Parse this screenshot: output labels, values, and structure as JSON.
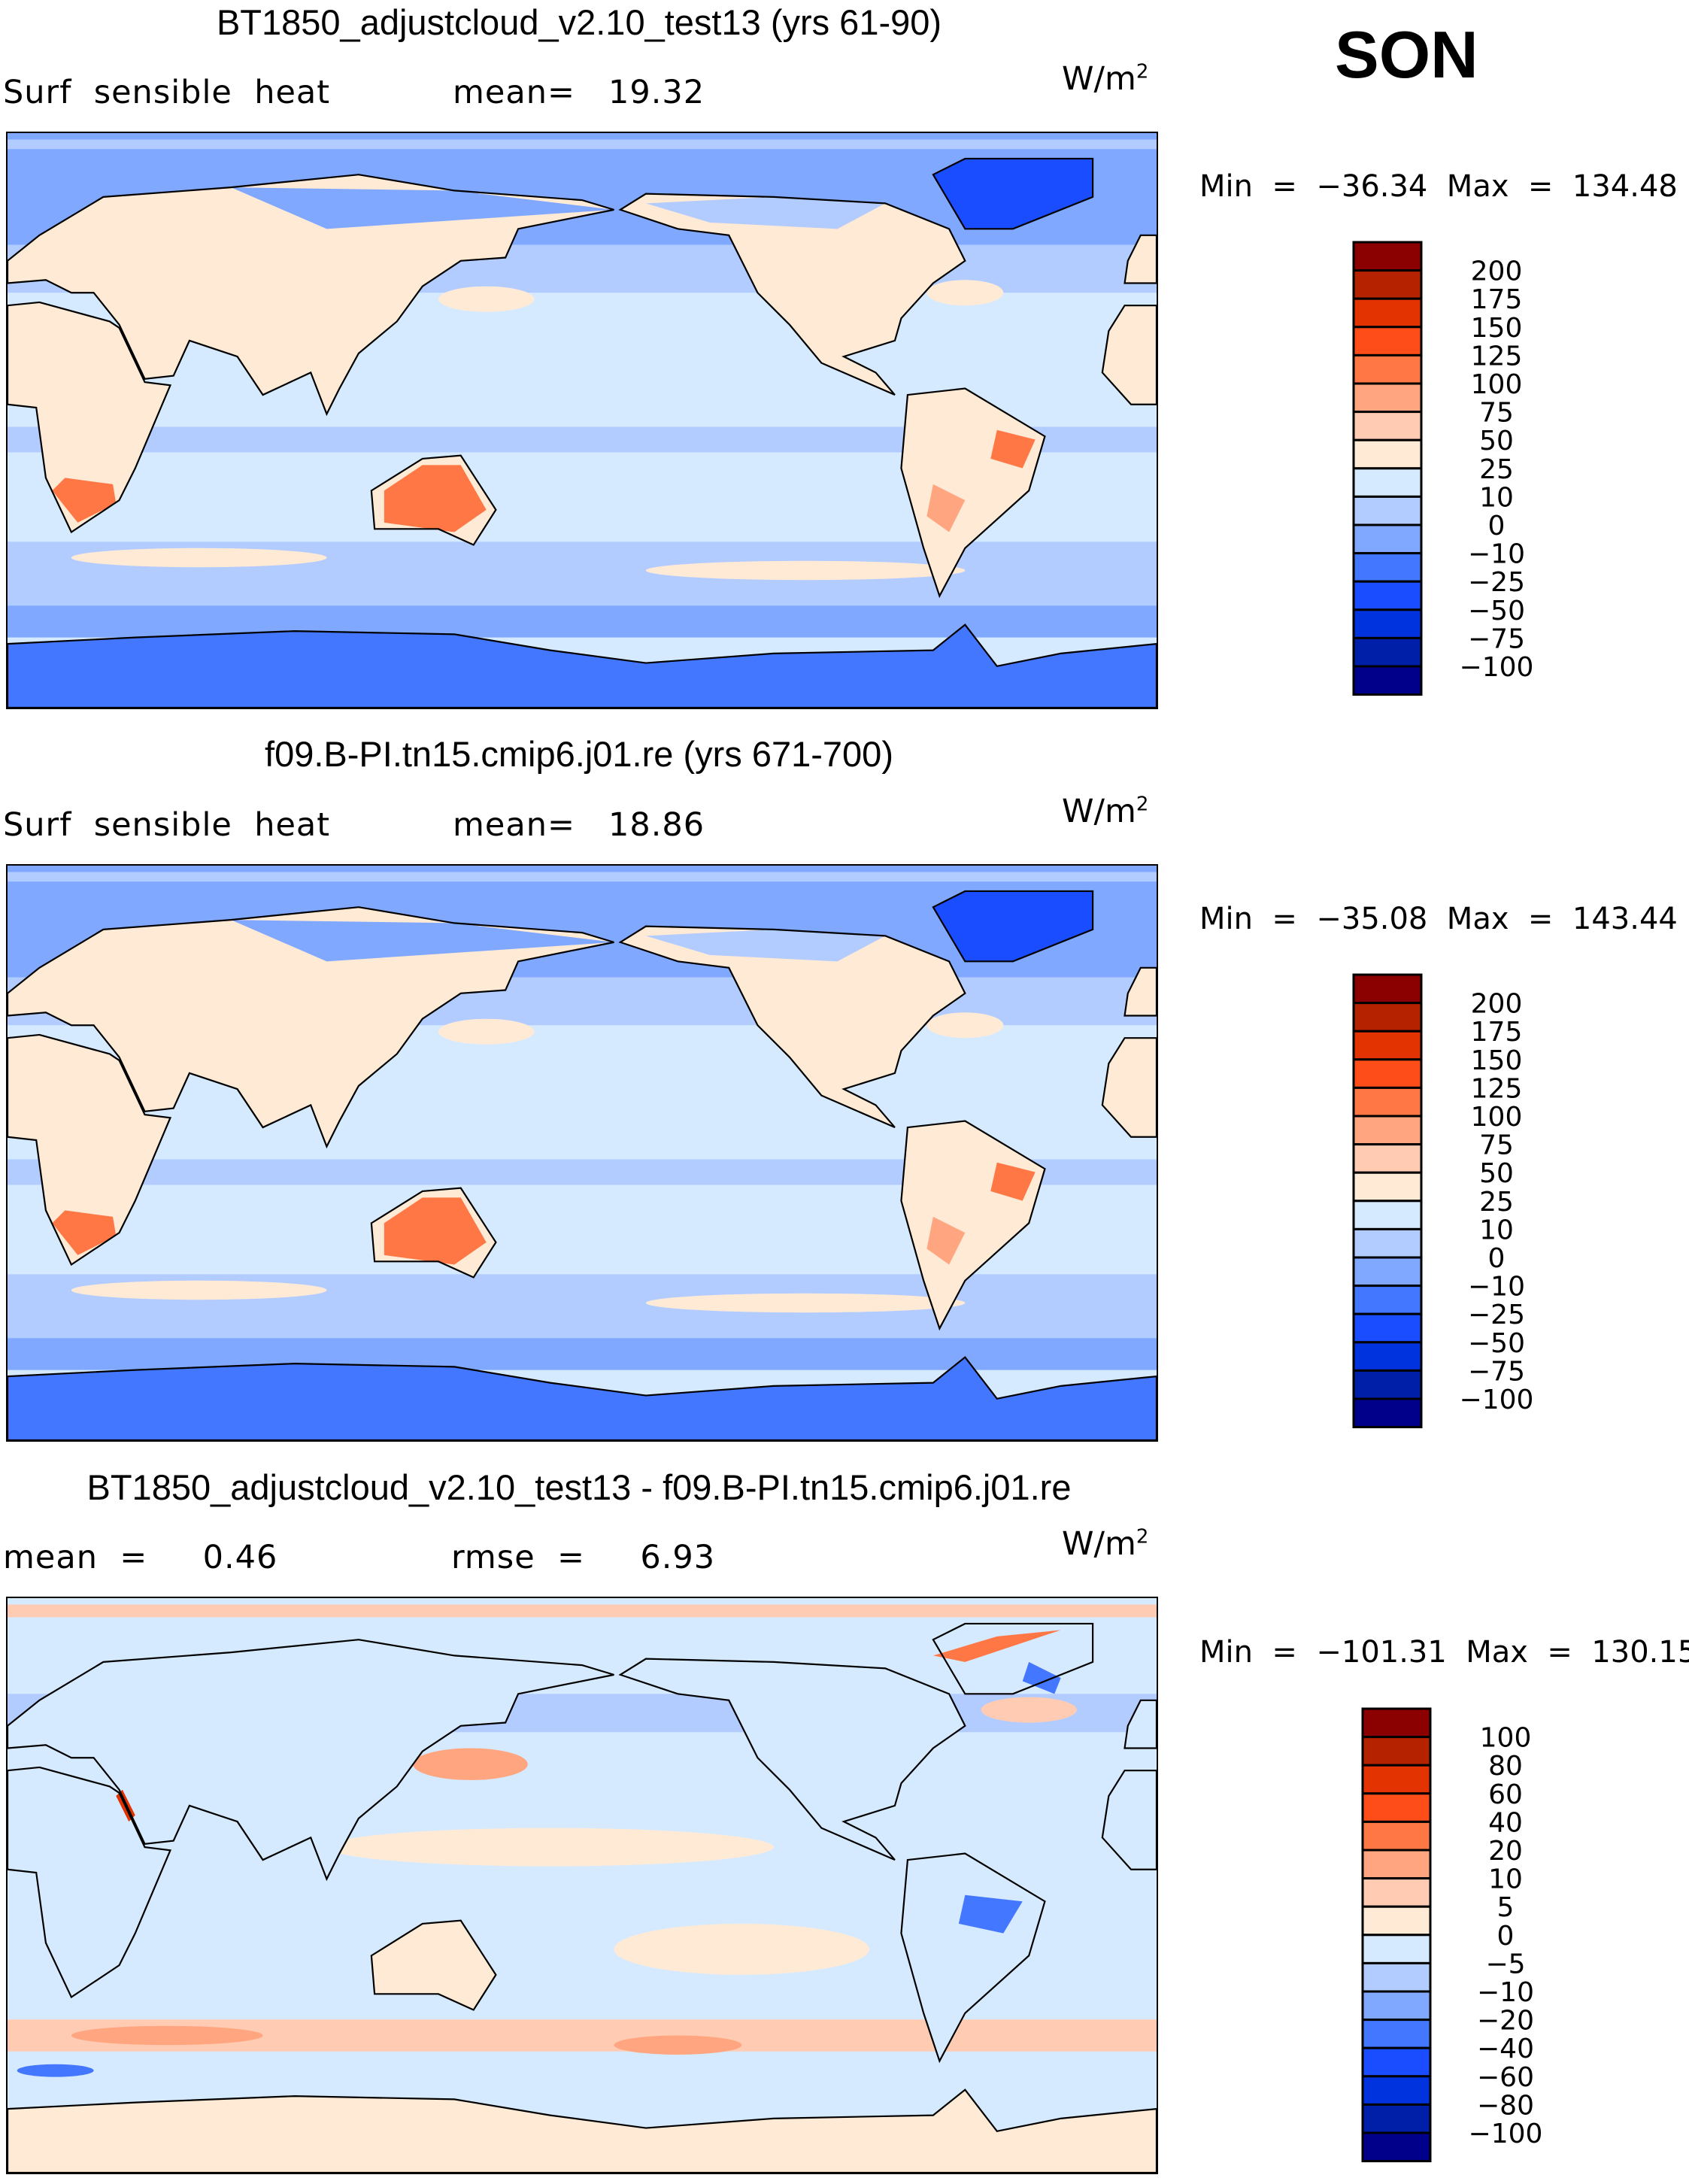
{
  "season": "SON",
  "unit_base": "W/m",
  "unit_exp": "2",
  "panels": [
    {
      "title": "BT1850_adjustcloud_v2.10_test13 (yrs 61-90)",
      "left_label": "Surf  sensible  heat",
      "center_label": "mean=   19.32",
      "minmax": "Min  =  −36.34  Max  =  134.48",
      "mean": 19.32,
      "min": -36.34,
      "max": 134.48
    },
    {
      "title": "f09.B-PI.tn15.cmip6.j01.re (yrs 671-700)",
      "left_label": "Surf  sensible  heat",
      "center_label": "mean=   18.86",
      "minmax": "Min  =  −35.08  Max  =  143.44",
      "mean": 18.86,
      "min": -35.08,
      "max": 143.44
    },
    {
      "title": "BT1850_adjustcloud_v2.10_test13 - f09.B-PI.tn15.cmip6.j01.re",
      "left_label": "mean  =     0.46",
      "center_label": "rmse  =     6.93",
      "minmax": "Min  =  −101.31  Max  =  130.15",
      "mean": 0.46,
      "rmse": 6.93,
      "min": -101.31,
      "max": 130.15
    }
  ],
  "colorbars": {
    "colors": [
      "#8b0000",
      "#b52200",
      "#e33300",
      "#ff4d1a",
      "#ff7744",
      "#ffa680",
      "#ffcbb3",
      "#ffead6",
      "#d6eaff",
      "#b3ccff",
      "#80a8ff",
      "#4477ff",
      "#1a4dff",
      "#0033dd",
      "#001fa8",
      "#00008b"
    ],
    "absolute_labels": [
      "200",
      "175",
      "150",
      "125",
      "100",
      "75",
      "50",
      "25",
      "10",
      "0",
      "−10",
      "−25",
      "−50",
      "−75",
      "−100"
    ],
    "difference_labels": [
      "100",
      "80",
      "60",
      "40",
      "20",
      "10",
      "5",
      "0",
      "−5",
      "−10",
      "−20",
      "−40",
      "−60",
      "−80",
      "−100"
    ]
  },
  "chart_data": {
    "type": "heatmap",
    "variable": "Surf sensible heat",
    "units": "W/m2",
    "season": "SON",
    "maps": [
      {
        "title": "BT1850_adjustcloud_v2.10_test13 (yrs 61-90)",
        "mean": 19.32,
        "min": -36.34,
        "max": 134.48,
        "levels": [
          -100,
          -75,
          -50,
          -25,
          -10,
          0,
          10,
          25,
          50,
          75,
          100,
          125,
          150,
          175,
          200
        ]
      },
      {
        "title": "f09.B-PI.tn15.cmip6.j01.re (yrs 671-700)",
        "mean": 18.86,
        "min": -35.08,
        "max": 143.44,
        "levels": [
          -100,
          -75,
          -50,
          -25,
          -10,
          0,
          10,
          25,
          50,
          75,
          100,
          125,
          150,
          175,
          200
        ]
      },
      {
        "title": "BT1850_adjustcloud_v2.10_test13 - f09.B-PI.tn15.cmip6.j01.re",
        "mean": 0.46,
        "rmse": 6.93,
        "min": -101.31,
        "max": 130.15,
        "levels": [
          -100,
          -80,
          -60,
          -40,
          -20,
          -10,
          -5,
          0,
          5,
          10,
          20,
          40,
          60,
          80,
          100
        ]
      }
    ]
  }
}
